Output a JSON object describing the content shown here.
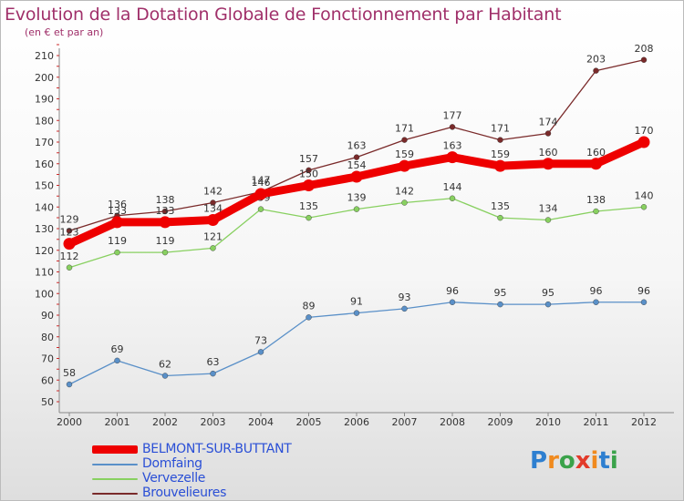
{
  "title": "Evolution de la Dotation Globale de Fonctionnement par Habitant",
  "subtitle": "(en € et par an)",
  "brand": {
    "letters": [
      "P",
      "r",
      "o",
      "x",
      "i",
      "t",
      "i"
    ],
    "colors": [
      "#2e7fd0",
      "#f08a1e",
      "#3aa24a",
      "#e23a2a",
      "#f08a1e",
      "#2e7fd0",
      "#3aa24a"
    ]
  },
  "chart_data": {
    "type": "line",
    "title": "Evolution de la Dotation Globale de Fonctionnement par Habitant",
    "ylabel": "(en € et par an)",
    "categories": [
      "2000",
      "2001",
      "2002",
      "2003",
      "2004",
      "2005",
      "2006",
      "2007",
      "2008",
      "2009",
      "2010",
      "2011",
      "2012"
    ],
    "yticks": [
      50,
      60,
      70,
      80,
      90,
      100,
      110,
      120,
      130,
      140,
      150,
      160,
      170,
      180,
      190,
      200,
      210
    ],
    "ylim": [
      50,
      210
    ],
    "grid": false,
    "series": [
      {
        "name": "Brouvelieures",
        "color": "#7a2a2a",
        "labels": true,
        "values": [
          129,
          136,
          138,
          142,
          147,
          157,
          163,
          171,
          177,
          171,
          174,
          203,
          208
        ]
      },
      {
        "name": "Vervezelle",
        "color": "#88d060",
        "labels": true,
        "values": [
          112,
          119,
          119,
          121,
          139,
          135,
          139,
          142,
          144,
          135,
          134,
          138,
          140
        ]
      },
      {
        "name": "Domfaing",
        "color": "#5a90c8",
        "labels": true,
        "values": [
          58,
          69,
          62,
          63,
          73,
          89,
          91,
          93,
          96,
          95,
          95,
          96,
          96
        ]
      },
      {
        "name": "BELMONT-SUR-BUTTANT",
        "color": "#ee0000",
        "labels": true,
        "values": [
          123,
          133,
          133,
          134,
          146,
          150,
          154,
          159,
          163,
          159,
          160,
          160,
          170
        ]
      }
    ],
    "legend": [
      "BELMONT-SUR-BUTTANT",
      "Domfaing",
      "Vervezelle",
      "Brouvelieures"
    ]
  }
}
